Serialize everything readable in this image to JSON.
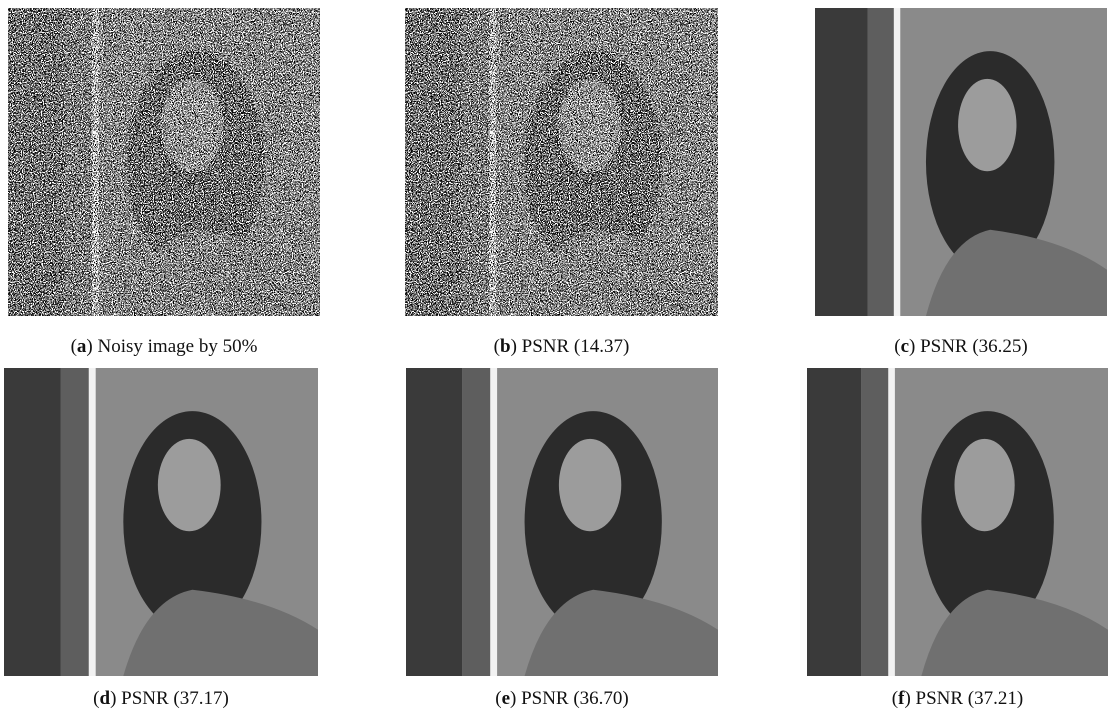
{
  "panels": [
    {
      "label": "(a)",
      "caption": "Noisy image by 50%"
    },
    {
      "label": "(b)",
      "caption": "PSNR (14.37)"
    },
    {
      "label": "(c)",
      "caption": "PSNR (36.25)"
    },
    {
      "label": "(d)",
      "caption": "PSNR (37.17)"
    },
    {
      "label": "(e)",
      "caption": "PSNR (36.70)"
    },
    {
      "label": "(f)",
      "caption": "PSNR (37.21)"
    }
  ]
}
